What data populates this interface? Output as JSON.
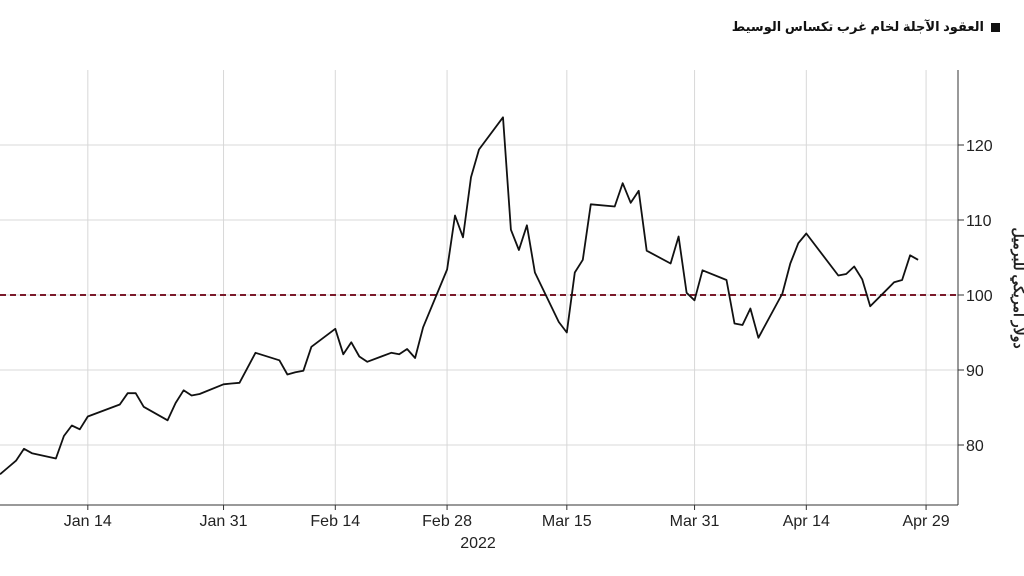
{
  "legend": {
    "label": "العقود الآجلة لخام غرب تكساس الوسيط",
    "color": "#111111"
  },
  "chart_data": {
    "type": "line",
    "title": "",
    "xlabel": "2022",
    "ylabel": "دولار أمريكي للبرميل",
    "y_axis_side": "right",
    "ylim": [
      72,
      130
    ],
    "yticks": [
      80,
      90,
      100,
      110,
      120
    ],
    "grid": true,
    "reference_line": {
      "y": 100,
      "style": "dashed",
      "color": "#7a1a2a"
    },
    "xticks": [
      {
        "x": "2022-01-14",
        "label": "Jan 14"
      },
      {
        "x": "2022-01-31",
        "label": "Jan 31"
      },
      {
        "x": "2022-02-14",
        "label": "Feb 14"
      },
      {
        "x": "2022-02-28",
        "label": "Feb 28"
      },
      {
        "x": "2022-03-15",
        "label": "Mar 15"
      },
      {
        "x": "2022-03-31",
        "label": "Mar 31"
      },
      {
        "x": "2022-04-14",
        "label": "Apr 14"
      },
      {
        "x": "2022-04-29",
        "label": "Apr 29"
      }
    ],
    "xlim": [
      "2022-01-03",
      "2022-05-03"
    ],
    "series": [
      {
        "color": "#111111",
        "points": [
          [
            "2022-01-03",
            76.1
          ],
          [
            "2022-01-04",
            77.0
          ],
          [
            "2022-01-05",
            77.9
          ],
          [
            "2022-01-06",
            79.5
          ],
          [
            "2022-01-07",
            78.9
          ],
          [
            "2022-01-10",
            78.2
          ],
          [
            "2022-01-11",
            81.2
          ],
          [
            "2022-01-12",
            82.6
          ],
          [
            "2022-01-13",
            82.1
          ],
          [
            "2022-01-14",
            83.8
          ],
          [
            "2022-01-18",
            85.4
          ],
          [
            "2022-01-19",
            86.9
          ],
          [
            "2022-01-20",
            86.9
          ],
          [
            "2022-01-21",
            85.1
          ],
          [
            "2022-01-24",
            83.3
          ],
          [
            "2022-01-25",
            85.6
          ],
          [
            "2022-01-26",
            87.3
          ],
          [
            "2022-01-27",
            86.6
          ],
          [
            "2022-01-28",
            86.8
          ],
          [
            "2022-01-31",
            88.1
          ],
          [
            "2022-02-01",
            88.2
          ],
          [
            "2022-02-02",
            88.3
          ],
          [
            "2022-02-03",
            90.3
          ],
          [
            "2022-02-04",
            92.3
          ],
          [
            "2022-02-07",
            91.3
          ],
          [
            "2022-02-08",
            89.4
          ],
          [
            "2022-02-09",
            89.7
          ],
          [
            "2022-02-10",
            89.9
          ],
          [
            "2022-02-11",
            93.1
          ],
          [
            "2022-02-14",
            95.5
          ],
          [
            "2022-02-15",
            92.1
          ],
          [
            "2022-02-16",
            93.7
          ],
          [
            "2022-02-17",
            91.8
          ],
          [
            "2022-02-18",
            91.1
          ],
          [
            "2022-02-21",
            92.3
          ],
          [
            "2022-02-22",
            92.1
          ],
          [
            "2022-02-23",
            92.8
          ],
          [
            "2022-02-24",
            91.6
          ],
          [
            "2022-02-25",
            95.7
          ],
          [
            "2022-02-28",
            103.4
          ],
          [
            "2022-03-01",
            110.6
          ],
          [
            "2022-03-02",
            107.7
          ],
          [
            "2022-03-03",
            115.7
          ],
          [
            "2022-03-04",
            119.4
          ],
          [
            "2022-03-07",
            123.7
          ],
          [
            "2022-03-08",
            108.7
          ],
          [
            "2022-03-09",
            106.0
          ],
          [
            "2022-03-10",
            109.3
          ],
          [
            "2022-03-11",
            103.0
          ],
          [
            "2022-03-14",
            96.4
          ],
          [
            "2022-03-15",
            95.0
          ],
          [
            "2022-03-16",
            103.0
          ],
          [
            "2022-03-17",
            104.7
          ],
          [
            "2022-03-18",
            112.1
          ],
          [
            "2022-03-21",
            111.8
          ],
          [
            "2022-03-22",
            114.9
          ],
          [
            "2022-03-23",
            112.3
          ],
          [
            "2022-03-24",
            113.9
          ],
          [
            "2022-03-25",
            105.9
          ],
          [
            "2022-03-28",
            104.2
          ],
          [
            "2022-03-29",
            107.8
          ],
          [
            "2022-03-30",
            100.3
          ],
          [
            "2022-03-31",
            99.3
          ],
          [
            "2022-04-01",
            103.3
          ],
          [
            "2022-04-04",
            102.0
          ],
          [
            "2022-04-05",
            96.2
          ],
          [
            "2022-04-06",
            96.0
          ],
          [
            "2022-04-07",
            98.2
          ],
          [
            "2022-04-08",
            94.3
          ],
          [
            "2022-04-11",
            100.2
          ],
          [
            "2022-04-12",
            104.2
          ],
          [
            "2022-04-13",
            106.9
          ],
          [
            "2022-04-14",
            108.2
          ],
          [
            "2022-04-18",
            102.6
          ],
          [
            "2022-04-19",
            102.8
          ],
          [
            "2022-04-20",
            103.8
          ],
          [
            "2022-04-21",
            102.1
          ],
          [
            "2022-04-22",
            98.5
          ],
          [
            "2022-04-25",
            101.7
          ],
          [
            "2022-04-26",
            102.0
          ],
          [
            "2022-04-27",
            105.3
          ],
          [
            "2022-04-28",
            104.7
          ]
        ]
      }
    ]
  }
}
